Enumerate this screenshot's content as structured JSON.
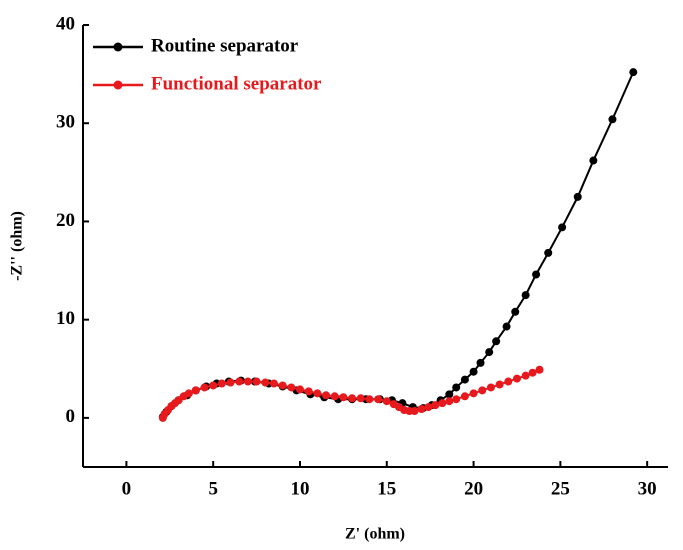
{
  "chart_data": {
    "type": "line",
    "xlabel": "Z' (ohm)",
    "ylabel": "-Z'' (ohm)",
    "xlim": [
      -2.5,
      31.2
    ],
    "ylim": [
      -5,
      40
    ],
    "xticks": [
      0,
      5,
      10,
      15,
      20,
      25,
      30
    ],
    "yticks": [
      0,
      10,
      20,
      30,
      40
    ],
    "legend": "upper-left",
    "series": [
      {
        "name": "Routine separator",
        "color": "#000000",
        "x": [
          2.1,
          2.3,
          2.6,
          3.0,
          3.5,
          4.0,
          4.6,
          5.2,
          5.9,
          6.6,
          7.4,
          8.2,
          9.0,
          9.8,
          10.6,
          11.4,
          12.2,
          13.0,
          13.8,
          14.6,
          15.3,
          15.9,
          16.5,
          17.1,
          17.6,
          18.1,
          18.6,
          19.0,
          19.5,
          20.0,
          20.4,
          20.9,
          21.3,
          21.9,
          22.4,
          23.0,
          23.6,
          24.3,
          25.1,
          26.0,
          26.9,
          28.0,
          29.2
        ],
        "values": [
          0.1,
          0.6,
          1.2,
          1.8,
          2.3,
          2.8,
          3.2,
          3.5,
          3.7,
          3.8,
          3.7,
          3.5,
          3.2,
          2.8,
          2.4,
          2.1,
          1.9,
          1.9,
          1.9,
          1.9,
          1.8,
          1.5,
          1.1,
          1.0,
          1.3,
          1.8,
          2.4,
          3.1,
          3.9,
          4.7,
          5.6,
          6.7,
          7.8,
          9.3,
          10.8,
          12.5,
          14.6,
          16.8,
          19.4,
          22.5,
          26.2,
          30.4,
          35.2
        ]
      },
      {
        "name": "Functional separator",
        "color": "#e8191c",
        "x": [
          2.1,
          2.2,
          2.4,
          2.6,
          2.8,
          3.0,
          3.3,
          3.6,
          4.0,
          4.5,
          5.0,
          5.5,
          6.0,
          6.5,
          7.0,
          7.5,
          8.0,
          8.5,
          9.0,
          9.5,
          10.0,
          10.5,
          11.0,
          11.5,
          12.0,
          12.5,
          13.0,
          13.5,
          14.0,
          14.5,
          15.0,
          15.4,
          15.7,
          16.0,
          16.3,
          16.6,
          17.0,
          17.4,
          17.8,
          18.2,
          18.6,
          19.0,
          19.5,
          20.0,
          20.5,
          21.0,
          21.5,
          22.0,
          22.5,
          23.0,
          23.4,
          23.8
        ],
        "values": [
          0.0,
          0.4,
          0.8,
          1.2,
          1.5,
          1.8,
          2.2,
          2.5,
          2.8,
          3.1,
          3.3,
          3.5,
          3.6,
          3.7,
          3.7,
          3.7,
          3.6,
          3.5,
          3.3,
          3.1,
          2.9,
          2.7,
          2.5,
          2.3,
          2.2,
          2.1,
          2.0,
          2.0,
          1.9,
          1.9,
          1.7,
          1.4,
          1.1,
          0.8,
          0.7,
          0.7,
          0.9,
          1.1,
          1.3,
          1.5,
          1.7,
          1.9,
          2.2,
          2.5,
          2.8,
          3.1,
          3.4,
          3.7,
          4.0,
          4.3,
          4.6,
          4.9
        ]
      }
    ]
  }
}
